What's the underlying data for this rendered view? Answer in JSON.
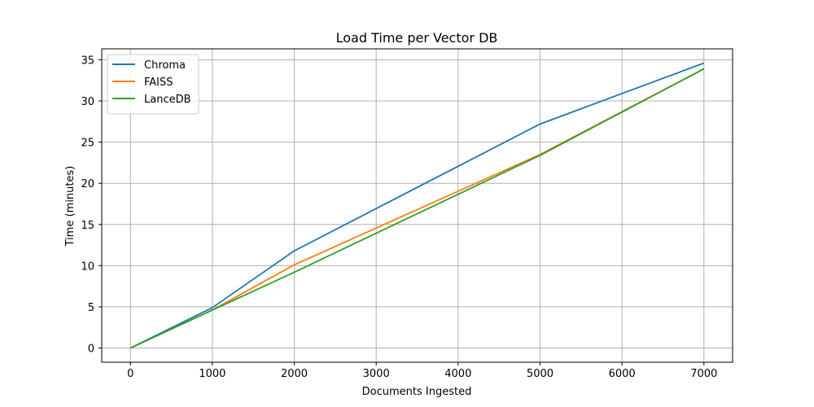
{
  "chart_data": {
    "type": "line",
    "title": "Load Time per Vector DB",
    "xlabel": "Documents Ingested",
    "ylabel": "Time (minutes)",
    "x": [
      0,
      1000,
      2000,
      5000,
      7000
    ],
    "series": [
      {
        "name": "Chroma",
        "color": "#1f77b4",
        "values": [
          0,
          4.9,
          11.8,
          27.2,
          34.6
        ]
      },
      {
        "name": "FAISS",
        "color": "#ff7f0e",
        "values": [
          0,
          4.6,
          10.1,
          23.5,
          33.9
        ]
      },
      {
        "name": "LanceDB",
        "color": "#2ca02c",
        "values": [
          0,
          4.6,
          9.2,
          23.4,
          33.9
        ]
      }
    ],
    "xlim": [
      -350,
      7350
    ],
    "ylim": [
      -1.73,
      36.33
    ],
    "xticks": [
      "0",
      "1000",
      "2000",
      "3000",
      "4000",
      "5000",
      "6000",
      "7000"
    ],
    "xtick_values": [
      0,
      1000,
      2000,
      3000,
      4000,
      5000,
      6000,
      7000
    ],
    "yticks": [
      "0",
      "5",
      "10",
      "15",
      "20",
      "25",
      "30",
      "35"
    ],
    "ytick_values": [
      0,
      5,
      10,
      15,
      20,
      25,
      30,
      35
    ],
    "grid": true,
    "legend_position": "top-left"
  }
}
